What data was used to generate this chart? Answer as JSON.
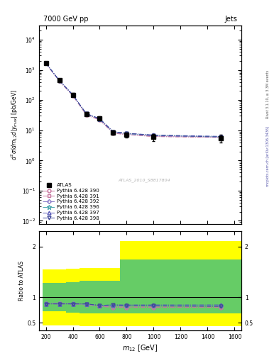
{
  "title_left": "7000 GeV pp",
  "title_right": "Jets",
  "right_label_top": "Rivet 3.1.10, ≥ 3.3M events",
  "right_label_bottom": "mcplots.cern.ch [arXiv:1306.3436]",
  "watermark": "ATLAS_2010_S8817804",
  "xlabel": "$m_{12}$ [GeV]",
  "ylabel_top": "$d^2\\sigma/dm_{12}d|y_{max}|$ [pb/GeV]",
  "ylabel_bot": "Ratio to ATLAS",
  "x_data": [
    200,
    300,
    400,
    500,
    600,
    700,
    800,
    1000,
    1500
  ],
  "atlas_y": [
    1700,
    450,
    150,
    35,
    25,
    8.5,
    7.0,
    6.0,
    5.5
  ],
  "atlas_yerr": [
    200,
    50,
    20,
    5,
    4,
    1.5,
    1.2,
    1.5,
    1.5
  ],
  "series": [
    {
      "label": "Pythia 6.428 390",
      "color": "#c878a0",
      "marker": "o",
      "y": [
        1650,
        430,
        140,
        33,
        22,
        8.0,
        7.2,
        6.2,
        5.8
      ],
      "ratio": [
        0.87,
        0.87,
        0.87,
        0.85,
        0.82,
        0.8,
        0.8,
        0.8,
        0.8
      ]
    },
    {
      "label": "Pythia 6.428 391",
      "color": "#c878a0",
      "marker": "s",
      "y": [
        1680,
        440,
        145,
        33,
        22,
        8.2,
        7.3,
        6.3,
        5.9
      ],
      "ratio": [
        0.88,
        0.88,
        0.87,
        0.86,
        0.82,
        0.81,
        0.81,
        0.81,
        0.81
      ]
    },
    {
      "label": "Pythia 6.428 392",
      "color": "#8878c8",
      "marker": "D",
      "y": [
        1680,
        445,
        148,
        35,
        23,
        8.5,
        7.5,
        6.5,
        6.0
      ],
      "ratio": [
        0.88,
        0.88,
        0.88,
        0.87,
        0.83,
        0.83,
        0.83,
        0.83,
        0.83
      ]
    },
    {
      "label": "Pythia 6.428 396",
      "color": "#50a8b0",
      "marker": "*",
      "y": [
        1700,
        450,
        150,
        35,
        24,
        8.8,
        7.8,
        6.8,
        6.2
      ],
      "ratio": [
        0.87,
        0.87,
        0.87,
        0.86,
        0.84,
        0.84,
        0.84,
        0.84,
        0.84
      ]
    },
    {
      "label": "Pythia 6.428 397",
      "color": "#5858b8",
      "marker": "^",
      "y": [
        1700,
        450,
        150,
        36,
        24,
        9.0,
        8.0,
        7.0,
        6.3
      ],
      "ratio": [
        0.87,
        0.87,
        0.87,
        0.87,
        0.84,
        0.85,
        0.85,
        0.85,
        0.85
      ]
    },
    {
      "label": "Pythia 6.428 398",
      "color": "#404898",
      "marker": "v",
      "y": [
        1700,
        450,
        150,
        36,
        24,
        9.0,
        8.0,
        6.8,
        6.0
      ],
      "ratio": [
        0.87,
        0.87,
        0.87,
        0.87,
        0.84,
        0.85,
        0.84,
        0.83,
        0.82
      ]
    }
  ],
  "yellow_band_x": [
    200,
    300,
    400,
    500,
    600,
    700,
    800,
    1000,
    1500
  ],
  "yellow_band_ylo": [
    0.45,
    0.45,
    0.44,
    0.43,
    0.43,
    0.43,
    0.43,
    0.43,
    0.43
  ],
  "yellow_band_yhi": [
    1.55,
    1.55,
    1.56,
    1.57,
    1.57,
    1.57,
    2.1,
    2.1,
    2.1
  ],
  "green_band_x": [
    200,
    300,
    400,
    500,
    600,
    700,
    800,
    1000,
    1500
  ],
  "green_band_ylo": [
    0.72,
    0.72,
    0.7,
    0.68,
    0.68,
    0.68,
    0.68,
    0.68,
    0.68
  ],
  "green_band_yhi": [
    1.28,
    1.28,
    1.3,
    1.32,
    1.32,
    1.32,
    1.75,
    1.75,
    1.75
  ]
}
